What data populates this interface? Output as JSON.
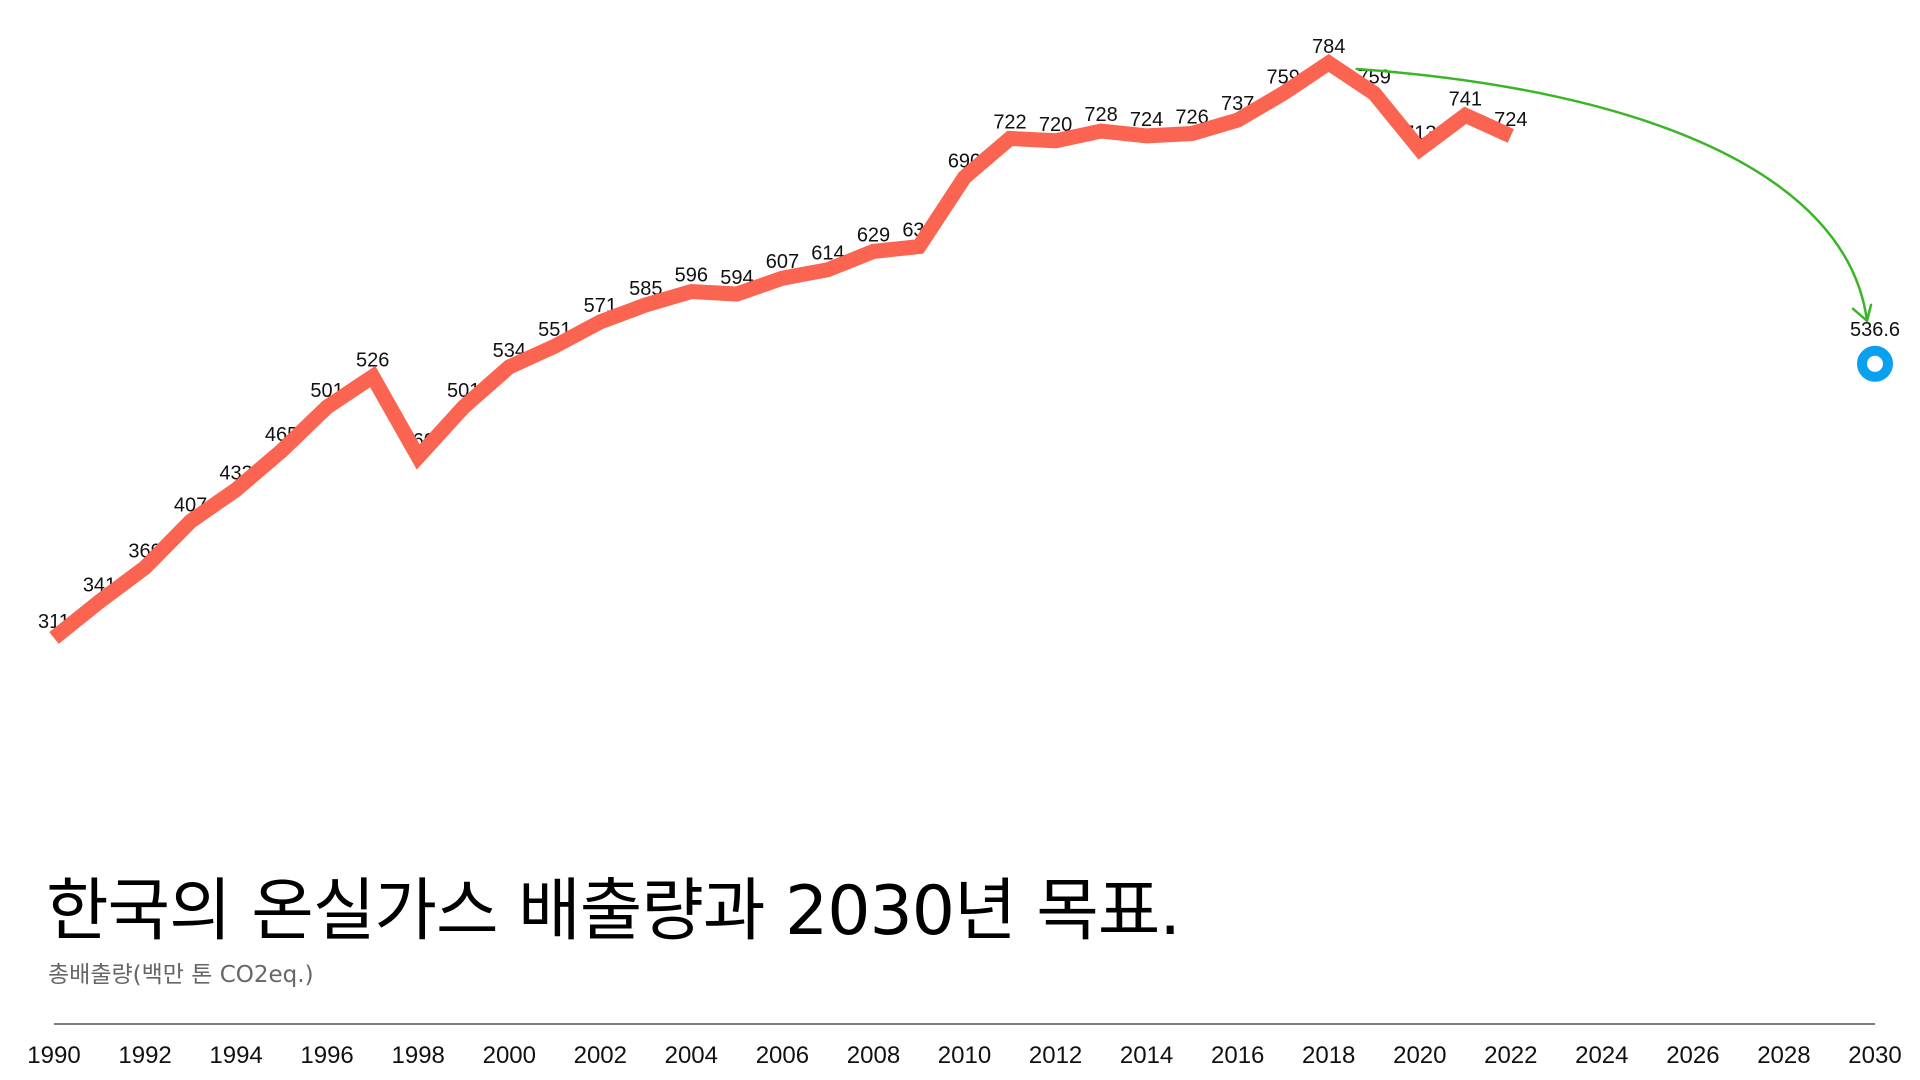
{
  "chart_data": {
    "type": "line",
    "title": "한국의 온실가스 배출량과 2030년 목표.",
    "subtitle": "총배출량(백만 톤 CO2eq.)",
    "x_ticks": [
      1990,
      1992,
      1994,
      1996,
      1998,
      2000,
      2002,
      2004,
      2006,
      2008,
      2010,
      2012,
      2014,
      2016,
      2018,
      2020,
      2022,
      2024,
      2026,
      2028,
      2030
    ],
    "xlim": [
      1990,
      2030
    ],
    "grid": false,
    "legend": "none",
    "series": [
      {
        "color": "#fa6450",
        "x": [
          1990,
          1991,
          1992,
          1993,
          1994,
          1995,
          1996,
          1997,
          1998,
          1999,
          2000,
          2001,
          2002,
          2003,
          2004,
          2005,
          2006,
          2007,
          2008,
          2009,
          2010,
          2011,
          2012,
          2013,
          2014,
          2015,
          2016,
          2017,
          2018,
          2019,
          2020,
          2021,
          2022
        ],
        "values": [
          311,
          341,
          369,
          407,
          433,
          465,
          501,
          526,
          460,
          501,
          534,
          551,
          571,
          585,
          596,
          594,
          607,
          614,
          629,
          633,
          690,
          722,
          720,
          728,
          724,
          726,
          737,
          759,
          784,
          759,
          713,
          741,
          724
        ]
      }
    ],
    "target": {
      "x": 2030,
      "value": 536.6,
      "label": "536.6",
      "color": "#0aa0f0"
    },
    "annotation": {
      "from_x": 2018,
      "to_x": 2030,
      "color": "#3cb428"
    }
  }
}
